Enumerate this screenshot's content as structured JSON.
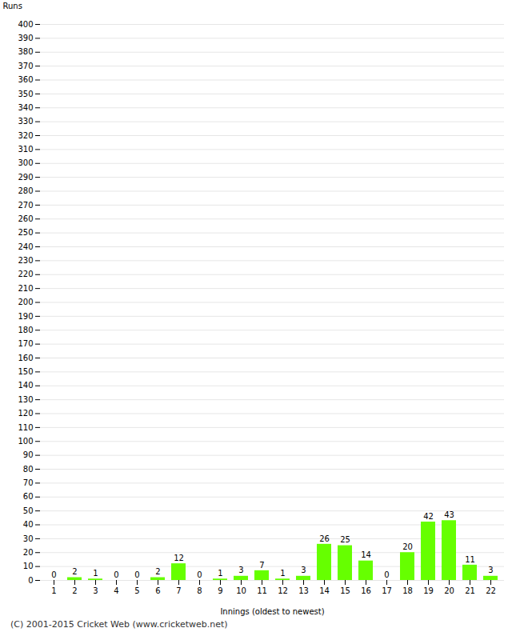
{
  "chart_data": {
    "type": "bar",
    "categories": [
      "1",
      "2",
      "3",
      "4",
      "5",
      "6",
      "7",
      "8",
      "9",
      "10",
      "11",
      "12",
      "13",
      "14",
      "15",
      "16",
      "17",
      "18",
      "19",
      "20",
      "21",
      "22"
    ],
    "values": [
      0,
      2,
      1,
      0,
      0,
      2,
      12,
      0,
      1,
      3,
      7,
      1,
      3,
      26,
      25,
      14,
      0,
      20,
      42,
      43,
      11,
      3
    ],
    "color": "#66ff00",
    "xlabel": "Innings (oldest to newest)",
    "ylabel": "Runs",
    "ylim": [
      0,
      400
    ],
    "yticks": [
      0,
      10,
      20,
      30,
      40,
      50,
      60,
      70,
      80,
      90,
      100,
      110,
      120,
      130,
      140,
      150,
      160,
      170,
      180,
      190,
      200,
      210,
      220,
      230,
      240,
      250,
      260,
      270,
      280,
      290,
      300,
      310,
      320,
      330,
      340,
      350,
      360,
      370,
      380,
      390,
      400
    ],
    "grid": true,
    "data_labels": true,
    "annotations": [
      "(C) 2001-2015 Cricket Web (www.cricketweb.net)"
    ]
  }
}
